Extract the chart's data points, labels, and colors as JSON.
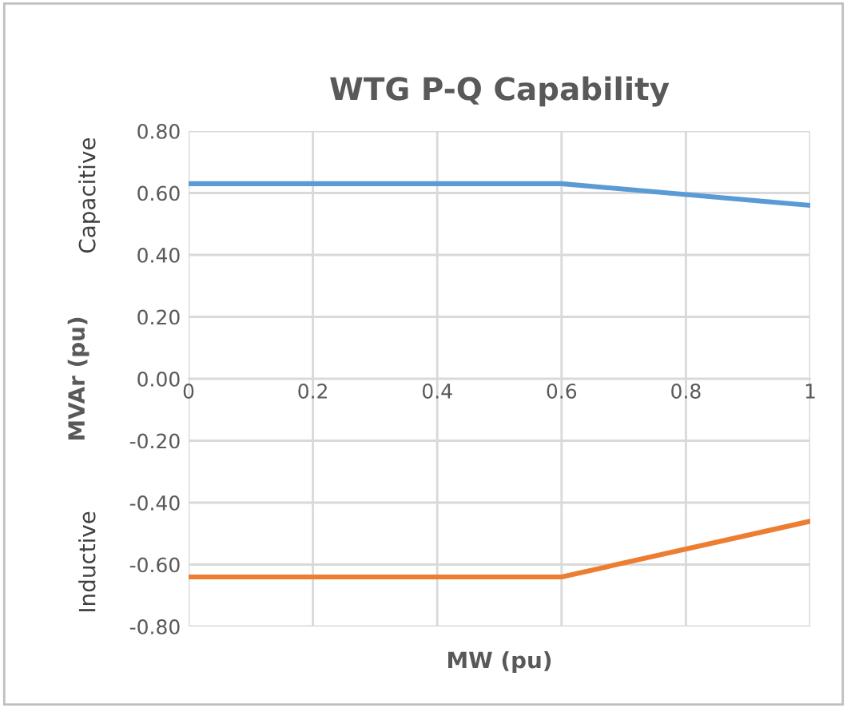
{
  "chart_data": {
    "type": "line",
    "title": "WTG P-Q Capability",
    "xlabel": "MW (pu)",
    "ylabel": "MVAr (pu)",
    "annotations": [
      "Capacitive",
      "Inductive"
    ],
    "series": [
      {
        "color": "#5b9bd5",
        "x": [
          0,
          0.6,
          1
        ],
        "values": [
          0.63,
          0.63,
          0.56
        ]
      },
      {
        "color": "#ed7d31",
        "x": [
          0,
          0.6,
          1
        ],
        "values": [
          -0.64,
          -0.64,
          -0.46
        ]
      }
    ],
    "xlim": [
      0,
      1
    ],
    "xticks": [
      0,
      0.2,
      0.4,
      0.6,
      0.8,
      1
    ],
    "ylim": [
      -0.8,
      0.8
    ],
    "yticks": [
      {
        "value": -0.8,
        "label": "-0.80"
      },
      {
        "value": -0.6,
        "label": "-0.60"
      },
      {
        "value": -0.4,
        "label": "-0.40"
      },
      {
        "value": -0.2,
        "label": "-0.20"
      },
      {
        "value": 0,
        "label": "0.00"
      },
      {
        "value": 0.2,
        "label": "0.20"
      },
      {
        "value": 0.4,
        "label": "0.40"
      },
      {
        "value": 0.6,
        "label": "0.60"
      },
      {
        "value": 0.8,
        "label": "0.80"
      }
    ],
    "grid": true,
    "legend": false,
    "marker": "none",
    "line_style": "solid"
  }
}
